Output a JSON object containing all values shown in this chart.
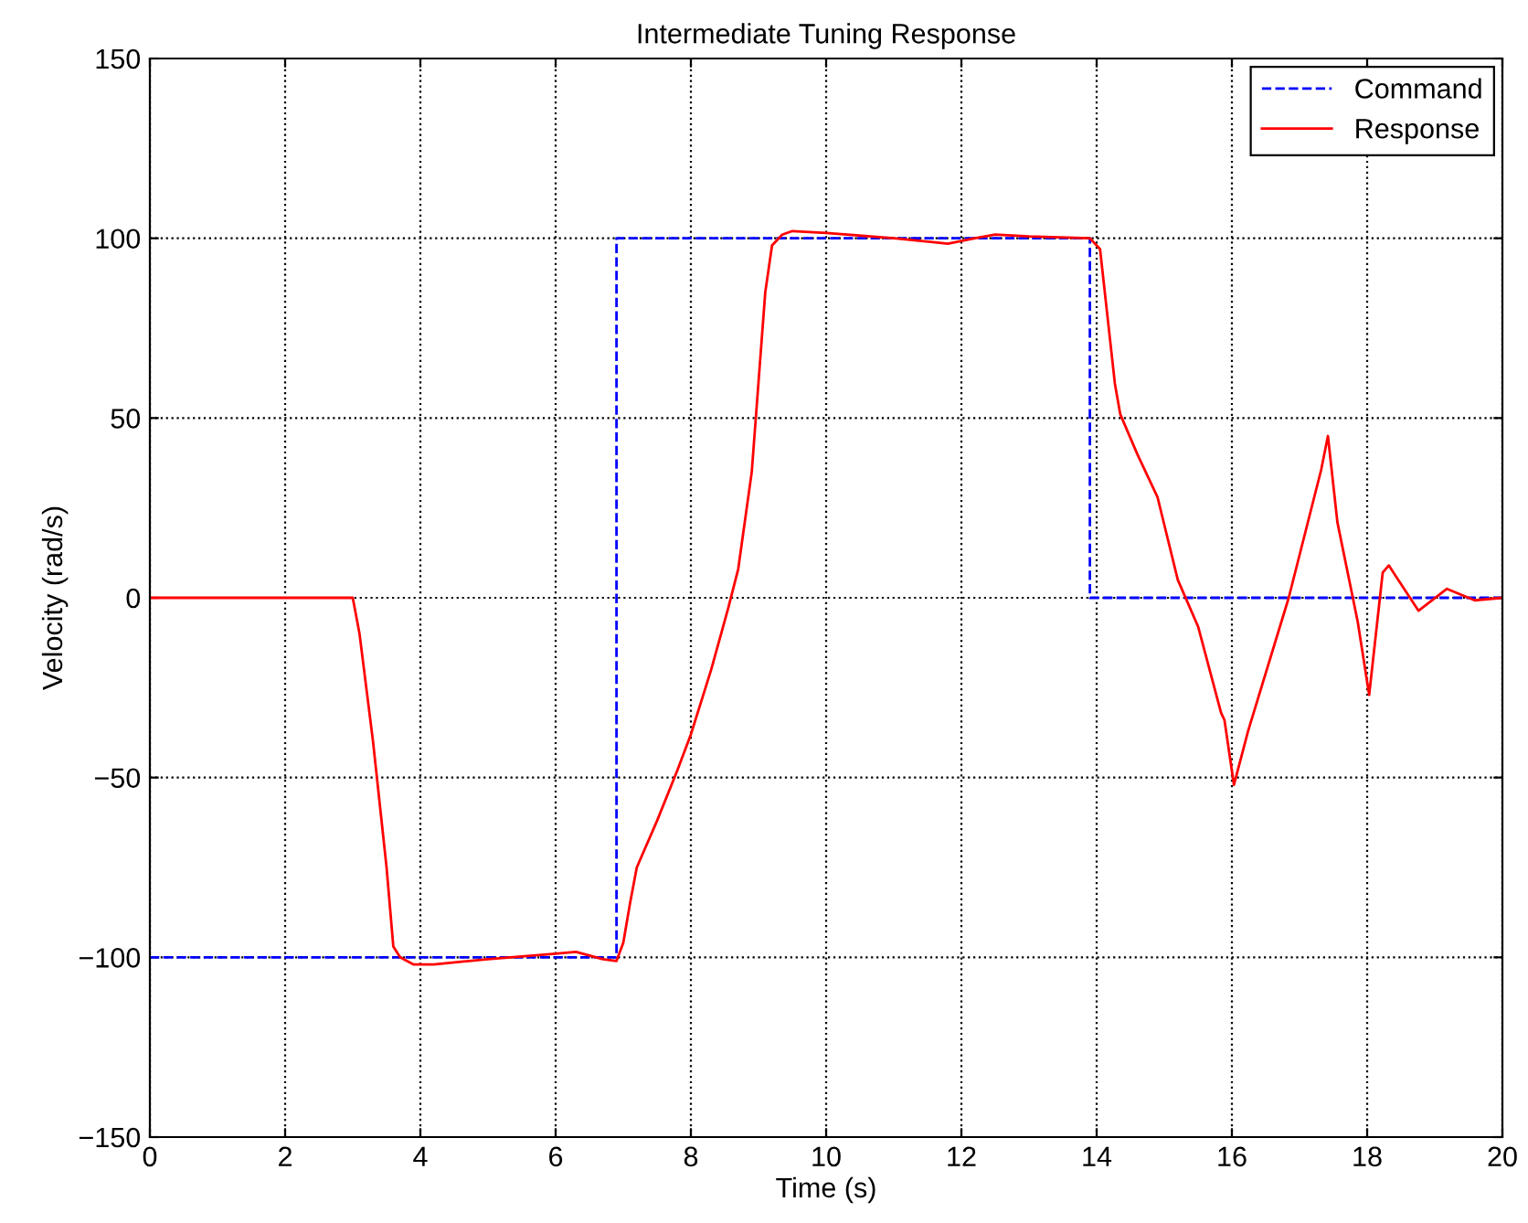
{
  "chart_data": {
    "type": "line",
    "title": "Intermediate Tuning Response",
    "xlabel": "Time (s)",
    "ylabel": "Velocity (rad/s)",
    "xlim": [
      0,
      20
    ],
    "ylim": [
      -150,
      150
    ],
    "xticks": [
      0,
      2,
      4,
      6,
      8,
      10,
      12,
      14,
      16,
      18,
      20
    ],
    "yticks": [
      {
        "value": -150,
        "label": "−150"
      },
      {
        "value": -100,
        "label": "−100"
      },
      {
        "value": -50,
        "label": "−50"
      },
      0,
      50,
      100,
      150
    ],
    "grid": true,
    "legend": "top right",
    "series": [
      {
        "name": "Command",
        "color": "#0000ff",
        "line_style": "dashed",
        "x": [
          0,
          6.9,
          6.9,
          13.9,
          13.9,
          20
        ],
        "values": [
          -100,
          -100,
          100,
          100,
          0,
          0
        ]
      },
      {
        "name": "Response",
        "color": "#ff0000",
        "line_style": "solid",
        "x": [
          0,
          3.0,
          3.1,
          3.3,
          3.5,
          3.6,
          3.7,
          3.9,
          4.2,
          5,
          6,
          6.3,
          6.5,
          6.7,
          6.9,
          7.0,
          7.1,
          7.2,
          7.5,
          7.8,
          8.0,
          8.3,
          8.55,
          8.7,
          8.9,
          9.0,
          9.1,
          9.2,
          9.35,
          9.5,
          10,
          11,
          11.8,
          12.2,
          12.5,
          13,
          13.9,
          14.05,
          14.27,
          14.35,
          14.6,
          14.9,
          15.2,
          15.5,
          15.84,
          15.89,
          16.03,
          16.24,
          16.84,
          17.32,
          17.42,
          17.56,
          17.86,
          18.03,
          18.23,
          18.32,
          18.76,
          19.18,
          19.59,
          20
        ],
        "values": [
          0,
          0,
          -10,
          -40,
          -75,
          -97,
          -100,
          -102,
          -102,
          -100.5,
          -99,
          -98.5,
          -99.5,
          -100.5,
          -101,
          -96,
          -85,
          -75,
          -62,
          -48,
          -38,
          -20,
          -3,
          8,
          35,
          60,
          85,
          98,
          101,
          102,
          101.5,
          100,
          98.5,
          100,
          101,
          100.5,
          100,
          97,
          59.5,
          51,
          40,
          28,
          5,
          -8,
          -32,
          -34,
          -52,
          -37,
          0,
          35.6,
          45,
          21,
          -6.6,
          -27,
          7,
          9,
          -3.6,
          2.5,
          -0.7,
          0
        ]
      }
    ]
  }
}
